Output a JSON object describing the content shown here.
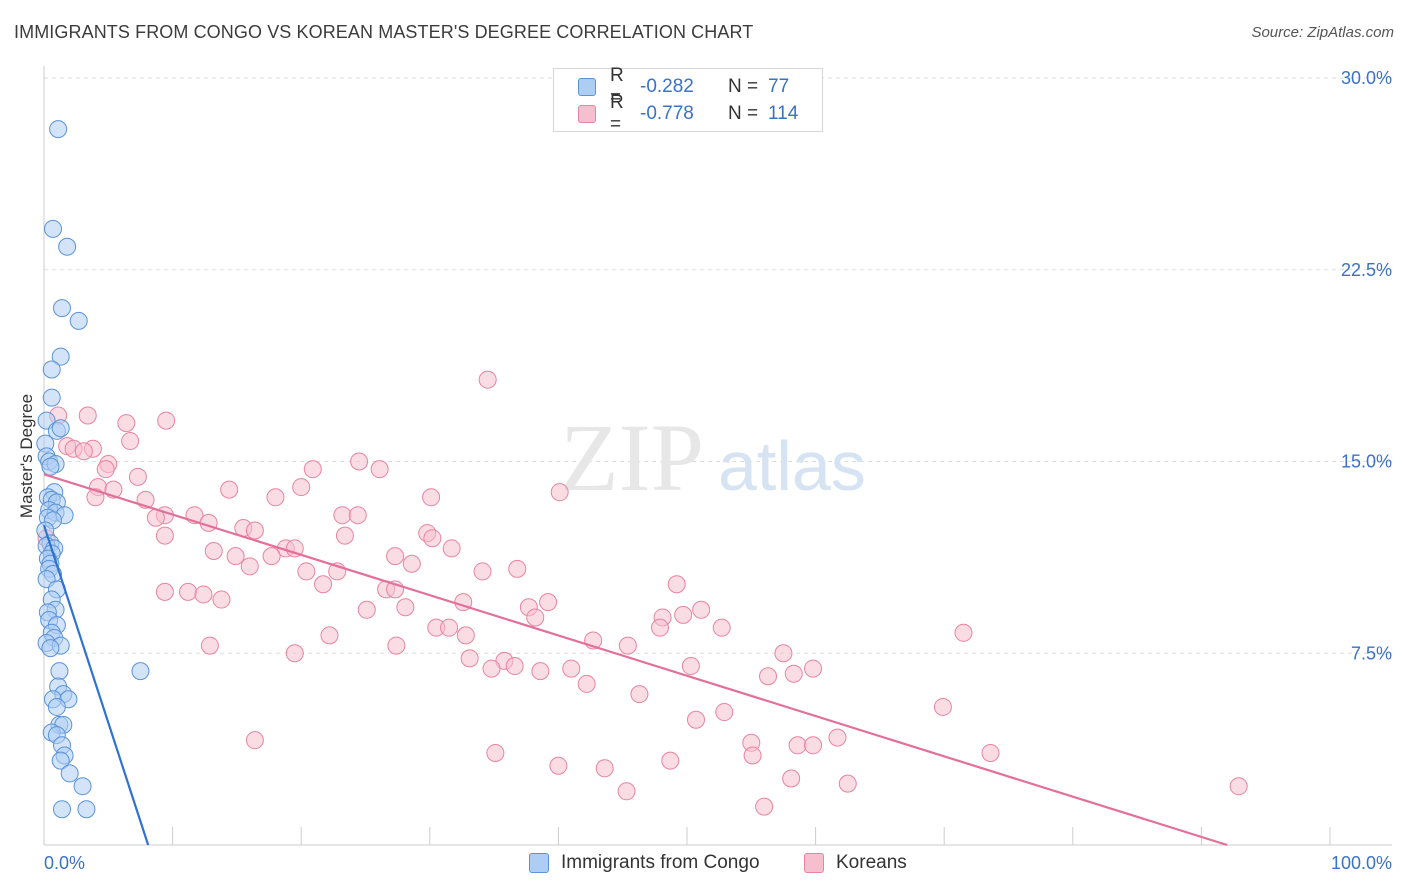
{
  "header": {
    "title": "IMMIGRANTS FROM CONGO VS KOREAN MASTER'S DEGREE CORRELATION CHART",
    "source": "Source: ZipAtlas.com"
  },
  "legend": {
    "rows": [
      {
        "r_label": "R =",
        "r_value": "-0.282",
        "n_label": "N =",
        "n_value": "77"
      },
      {
        "r_label": "R =",
        "r_value": "-0.778",
        "n_label": "N =",
        "n_value": "114"
      }
    ]
  },
  "bottom_legend": {
    "items": [
      {
        "label": "Immigrants from Congo"
      },
      {
        "label": "Koreans"
      }
    ]
  },
  "watermark": {
    "part1": "ZIP",
    "part2": "atlas"
  },
  "colors": {
    "blue_fill": "#aecdf2",
    "blue_stroke": "#5b93d8",
    "blue_line": "#2f72d0",
    "pink_fill": "#f6bfd0",
    "pink_stroke": "#e9849f",
    "pink_line": "#e3709a",
    "axis_text": "#3a72c4",
    "grid": "#dedede"
  },
  "chart_data": {
    "type": "scatter",
    "title": "IMMIGRANTS FROM CONGO VS KOREAN MASTER'S DEGREE CORRELATION CHART",
    "xlabel": "",
    "ylabel": "Master's Degree",
    "xlim": [
      0,
      100
    ],
    "ylim": [
      0,
      30
    ],
    "x_tick_labels": [
      "0.0%",
      "100.0%"
    ],
    "y_tick_labels": [
      "7.5%",
      "15.0%",
      "22.5%",
      "30.0%"
    ],
    "y_tick_values": [
      7.5,
      15.0,
      22.5,
      30.0
    ],
    "grid": true,
    "series": [
      {
        "name": "Immigrants from Congo",
        "R": -0.282,
        "N": 77,
        "trendline": {
          "x": [
            0.0,
            8.1
          ],
          "y": [
            12.5,
            0.0
          ]
        },
        "points": [
          [
            1.1,
            28.0
          ],
          [
            0.7,
            24.1
          ],
          [
            1.8,
            23.4
          ],
          [
            1.4,
            21.0
          ],
          [
            2.7,
            20.5
          ],
          [
            1.3,
            19.1
          ],
          [
            0.6,
            18.6
          ],
          [
            0.6,
            17.5
          ],
          [
            0.2,
            16.6
          ],
          [
            1.0,
            16.2
          ],
          [
            1.3,
            16.3
          ],
          [
            0.1,
            15.7
          ],
          [
            0.2,
            15.2
          ],
          [
            0.4,
            15.0
          ],
          [
            0.9,
            14.9
          ],
          [
            0.5,
            14.8
          ],
          [
            0.8,
            13.8
          ],
          [
            0.3,
            13.6
          ],
          [
            0.6,
            13.5
          ],
          [
            1.0,
            13.4
          ],
          [
            0.4,
            13.1
          ],
          [
            0.9,
            13.0
          ],
          [
            1.6,
            12.9
          ],
          [
            0.3,
            12.8
          ],
          [
            0.7,
            12.7
          ],
          [
            0.1,
            12.3
          ],
          [
            0.5,
            11.8
          ],
          [
            0.2,
            11.7
          ],
          [
            0.8,
            11.6
          ],
          [
            0.6,
            11.4
          ],
          [
            0.3,
            11.2
          ],
          [
            0.5,
            11.0
          ],
          [
            0.4,
            10.8
          ],
          [
            0.7,
            10.6
          ],
          [
            0.2,
            10.4
          ],
          [
            1.0,
            10.0
          ],
          [
            0.6,
            9.6
          ],
          [
            0.9,
            9.2
          ],
          [
            0.3,
            9.1
          ],
          [
            0.4,
            8.8
          ],
          [
            1.0,
            8.6
          ],
          [
            0.6,
            8.3
          ],
          [
            0.8,
            8.1
          ],
          [
            0.2,
            7.9
          ],
          [
            1.3,
            7.8
          ],
          [
            0.5,
            7.7
          ],
          [
            7.5,
            6.8
          ],
          [
            1.2,
            6.8
          ],
          [
            1.1,
            6.2
          ],
          [
            1.5,
            5.9
          ],
          [
            0.7,
            5.7
          ],
          [
            1.9,
            5.7
          ],
          [
            1.0,
            5.4
          ],
          [
            1.2,
            4.7
          ],
          [
            1.5,
            4.7
          ],
          [
            0.6,
            4.4
          ],
          [
            1.0,
            4.3
          ],
          [
            1.4,
            3.9
          ],
          [
            1.6,
            3.5
          ],
          [
            1.3,
            3.3
          ],
          [
            2.0,
            2.8
          ],
          [
            3.0,
            2.3
          ],
          [
            1.4,
            1.4
          ],
          [
            3.3,
            1.4
          ]
        ]
      },
      {
        "name": "Koreans",
        "R": -0.778,
        "N": 114,
        "trendline": {
          "x": [
            0.0,
            92.0
          ],
          "y": [
            14.5,
            0.0
          ]
        },
        "points": [
          [
            34.5,
            18.2
          ],
          [
            3.4,
            16.8
          ],
          [
            1.1,
            16.8
          ],
          [
            9.5,
            16.6
          ],
          [
            6.4,
            16.5
          ],
          [
            6.7,
            15.8
          ],
          [
            1.8,
            15.6
          ],
          [
            2.3,
            15.5
          ],
          [
            3.8,
            15.5
          ],
          [
            3.1,
            15.4
          ],
          [
            24.5,
            15.0
          ],
          [
            5.0,
            14.9
          ],
          [
            4.8,
            14.7
          ],
          [
            20.9,
            14.7
          ],
          [
            26.1,
            14.7
          ],
          [
            7.3,
            14.4
          ],
          [
            20.0,
            14.0
          ],
          [
            4.2,
            14.0
          ],
          [
            14.4,
            13.9
          ],
          [
            5.4,
            13.9
          ],
          [
            40.1,
            13.8
          ],
          [
            4.0,
            13.6
          ],
          [
            18.0,
            13.6
          ],
          [
            30.1,
            13.6
          ],
          [
            7.9,
            13.5
          ],
          [
            9.4,
            12.9
          ],
          [
            11.7,
            12.9
          ],
          [
            23.2,
            12.9
          ],
          [
            24.4,
            12.9
          ],
          [
            8.7,
            12.8
          ],
          [
            12.8,
            12.6
          ],
          [
            15.5,
            12.4
          ],
          [
            16.4,
            12.3
          ],
          [
            29.8,
            12.2
          ],
          [
            9.4,
            12.1
          ],
          [
            0.2,
            12.0
          ],
          [
            23.4,
            12.1
          ],
          [
            30.2,
            12.0
          ],
          [
            18.8,
            11.6
          ],
          [
            19.5,
            11.6
          ],
          [
            13.2,
            11.5
          ],
          [
            31.7,
            11.6
          ],
          [
            14.9,
            11.3
          ],
          [
            17.7,
            11.3
          ],
          [
            27.3,
            11.3
          ],
          [
            16.0,
            10.9
          ],
          [
            28.6,
            11.0
          ],
          [
            20.4,
            10.7
          ],
          [
            22.8,
            10.7
          ],
          [
            34.1,
            10.7
          ],
          [
            36.8,
            10.8
          ],
          [
            21.7,
            10.2
          ],
          [
            49.2,
            10.2
          ],
          [
            9.4,
            9.9
          ],
          [
            26.6,
            10.0
          ],
          [
            27.3,
            10.0
          ],
          [
            11.2,
            9.9
          ],
          [
            12.4,
            9.8
          ],
          [
            13.8,
            9.6
          ],
          [
            32.6,
            9.5
          ],
          [
            39.2,
            9.5
          ],
          [
            28.1,
            9.3
          ],
          [
            37.7,
            9.3
          ],
          [
            25.1,
            9.2
          ],
          [
            51.1,
            9.2
          ],
          [
            49.7,
            9.0
          ],
          [
            48.1,
            8.9
          ],
          [
            38.2,
            8.9
          ],
          [
            30.5,
            8.5
          ],
          [
            31.5,
            8.5
          ],
          [
            47.9,
            8.5
          ],
          [
            52.7,
            8.5
          ],
          [
            71.5,
            8.3
          ],
          [
            22.2,
            8.2
          ],
          [
            32.8,
            8.2
          ],
          [
            42.7,
            8.0
          ],
          [
            27.4,
            7.8
          ],
          [
            12.9,
            7.8
          ],
          [
            45.4,
            7.8
          ],
          [
            57.5,
            7.5
          ],
          [
            19.5,
            7.5
          ],
          [
            33.1,
            7.3
          ],
          [
            35.8,
            7.2
          ],
          [
            36.6,
            7.0
          ],
          [
            50.3,
            7.0
          ],
          [
            34.8,
            6.9
          ],
          [
            41.0,
            6.9
          ],
          [
            59.8,
            6.9
          ],
          [
            38.6,
            6.8
          ],
          [
            58.3,
            6.7
          ],
          [
            56.3,
            6.6
          ],
          [
            42.2,
            6.3
          ],
          [
            46.3,
            5.9
          ],
          [
            69.9,
            5.4
          ],
          [
            52.9,
            5.2
          ],
          [
            50.7,
            4.9
          ],
          [
            16.4,
            4.1
          ],
          [
            61.7,
            4.2
          ],
          [
            55.0,
            4.0
          ],
          [
            58.6,
            3.9
          ],
          [
            59.8,
            3.9
          ],
          [
            55.1,
            3.5
          ],
          [
            35.1,
            3.6
          ],
          [
            73.6,
            3.6
          ],
          [
            40.0,
            3.1
          ],
          [
            43.6,
            3.0
          ],
          [
            48.7,
            3.3
          ],
          [
            45.3,
            2.1
          ],
          [
            58.1,
            2.6
          ],
          [
            62.5,
            2.4
          ],
          [
            92.9,
            2.3
          ],
          [
            56.0,
            1.5
          ]
        ]
      }
    ]
  }
}
